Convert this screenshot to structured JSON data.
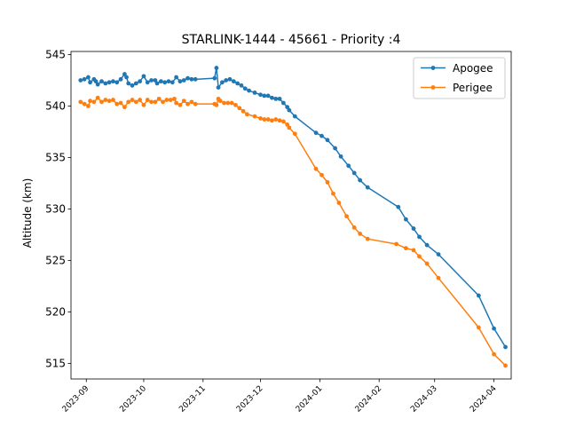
{
  "chart_data": {
    "type": "line",
    "title": "STARLINK-1444 - 45661 - Priority :4",
    "xlabel": "",
    "ylabel": "Altitude (km)",
    "xlim": [
      "2023-08-24",
      "2024-04-10"
    ],
    "ylim": [
      513.5,
      545.3
    ],
    "x_ticks": [
      "2023-09",
      "2023-10",
      "2023-11",
      "2023-12",
      "2024-01",
      "2024-02",
      "2024-03",
      "2024-04"
    ],
    "y_ticks": [
      515,
      520,
      525,
      530,
      535,
      540,
      545
    ],
    "grid": false,
    "legend_position": "top-right",
    "series": [
      {
        "name": "Apogee",
        "color": "#1f77b4",
        "points": [
          [
            "2023-08-29",
            542.5
          ],
          [
            "2023-08-31",
            542.6
          ],
          [
            "2023-09-02",
            542.8
          ],
          [
            "2023-09-03",
            542.3
          ],
          [
            "2023-09-05",
            542.6
          ],
          [
            "2023-09-06",
            542.4
          ],
          [
            "2023-09-07",
            542.1
          ],
          [
            "2023-09-09",
            542.4
          ],
          [
            "2023-09-11",
            542.2
          ],
          [
            "2023-09-13",
            542.3
          ],
          [
            "2023-09-15",
            542.4
          ],
          [
            "2023-09-17",
            542.3
          ],
          [
            "2023-09-19",
            542.6
          ],
          [
            "2023-09-21",
            543.1
          ],
          [
            "2023-09-22",
            542.8
          ],
          [
            "2023-09-23",
            542.2
          ],
          [
            "2023-09-25",
            542.0
          ],
          [
            "2023-09-27",
            542.2
          ],
          [
            "2023-09-29",
            542.4
          ],
          [
            "2023-10-01",
            542.9
          ],
          [
            "2023-10-03",
            542.3
          ],
          [
            "2023-10-05",
            542.5
          ],
          [
            "2023-10-07",
            542.5
          ],
          [
            "2023-10-08",
            542.2
          ],
          [
            "2023-10-10",
            542.4
          ],
          [
            "2023-10-12",
            542.3
          ],
          [
            "2023-10-14",
            542.4
          ],
          [
            "2023-10-16",
            542.3
          ],
          [
            "2023-10-18",
            542.8
          ],
          [
            "2023-10-20",
            542.4
          ],
          [
            "2023-10-22",
            542.5
          ],
          [
            "2023-10-24",
            542.7
          ],
          [
            "2023-10-26",
            542.6
          ],
          [
            "2023-10-28",
            542.6
          ],
          [
            "2023-11-07",
            542.7
          ],
          [
            "2023-11-08",
            543.7
          ],
          [
            "2023-11-09",
            541.8
          ],
          [
            "2023-11-11",
            542.3
          ],
          [
            "2023-11-13",
            542.5
          ],
          [
            "2023-11-15",
            542.6
          ],
          [
            "2023-11-17",
            542.4
          ],
          [
            "2023-11-19",
            542.2
          ],
          [
            "2023-11-21",
            542.0
          ],
          [
            "2023-11-23",
            541.7
          ],
          [
            "2023-11-25",
            541.5
          ],
          [
            "2023-11-28",
            541.3
          ],
          [
            "2023-12-01",
            541.1
          ],
          [
            "2023-12-03",
            541.0
          ],
          [
            "2023-12-05",
            541.0
          ],
          [
            "2023-12-07",
            540.8
          ],
          [
            "2023-12-09",
            540.7
          ],
          [
            "2023-12-11",
            540.7
          ],
          [
            "2023-12-13",
            540.3
          ],
          [
            "2023-12-15",
            539.9
          ],
          [
            "2023-12-16",
            539.6
          ],
          [
            "2023-12-19",
            539.0
          ],
          [
            "2023-12-30",
            537.4
          ],
          [
            "2024-01-02",
            537.1
          ],
          [
            "2024-01-05",
            536.7
          ],
          [
            "2024-01-09",
            535.9
          ],
          [
            "2024-01-12",
            535.1
          ],
          [
            "2024-01-16",
            534.2
          ],
          [
            "2024-01-19",
            533.5
          ],
          [
            "2024-01-22",
            532.8
          ],
          [
            "2024-01-26",
            532.1
          ],
          [
            "2024-02-11",
            530.2
          ],
          [
            "2024-02-15",
            529.0
          ],
          [
            "2024-02-19",
            528.1
          ],
          [
            "2024-02-22",
            527.3
          ],
          [
            "2024-02-26",
            526.5
          ],
          [
            "2024-03-03",
            525.6
          ],
          [
            "2024-03-24",
            521.6
          ],
          [
            "2024-04-01",
            518.4
          ],
          [
            "2024-04-07",
            516.6
          ]
        ]
      },
      {
        "name": "Perigee",
        "color": "#ff7f0e",
        "points": [
          [
            "2023-08-29",
            540.4
          ],
          [
            "2023-08-31",
            540.2
          ],
          [
            "2023-09-02",
            540.0
          ],
          [
            "2023-09-03",
            540.5
          ],
          [
            "2023-09-05",
            540.4
          ],
          [
            "2023-09-07",
            540.8
          ],
          [
            "2023-09-09",
            540.4
          ],
          [
            "2023-09-11",
            540.6
          ],
          [
            "2023-09-13",
            540.5
          ],
          [
            "2023-09-15",
            540.6
          ],
          [
            "2023-09-17",
            540.2
          ],
          [
            "2023-09-19",
            540.3
          ],
          [
            "2023-09-21",
            539.9
          ],
          [
            "2023-09-23",
            540.4
          ],
          [
            "2023-09-25",
            540.6
          ],
          [
            "2023-09-27",
            540.4
          ],
          [
            "2023-09-29",
            540.6
          ],
          [
            "2023-10-01",
            540.1
          ],
          [
            "2023-10-03",
            540.6
          ],
          [
            "2023-10-05",
            540.4
          ],
          [
            "2023-10-07",
            540.4
          ],
          [
            "2023-10-09",
            540.7
          ],
          [
            "2023-10-11",
            540.4
          ],
          [
            "2023-10-13",
            540.6
          ],
          [
            "2023-10-15",
            540.6
          ],
          [
            "2023-10-17",
            540.7
          ],
          [
            "2023-10-18",
            540.3
          ],
          [
            "2023-10-20",
            540.1
          ],
          [
            "2023-10-22",
            540.5
          ],
          [
            "2023-10-24",
            540.2
          ],
          [
            "2023-10-26",
            540.4
          ],
          [
            "2023-10-28",
            540.2
          ],
          [
            "2023-11-07",
            540.2
          ],
          [
            "2023-11-08",
            540.1
          ],
          [
            "2023-11-09",
            540.7
          ],
          [
            "2023-11-10",
            540.5
          ],
          [
            "2023-11-12",
            540.3
          ],
          [
            "2023-11-14",
            540.3
          ],
          [
            "2023-11-16",
            540.3
          ],
          [
            "2023-11-18",
            540.1
          ],
          [
            "2023-11-20",
            539.8
          ],
          [
            "2023-11-22",
            539.5
          ],
          [
            "2023-11-24",
            539.2
          ],
          [
            "2023-11-28",
            539.0
          ],
          [
            "2023-12-01",
            538.8
          ],
          [
            "2023-12-03",
            538.7
          ],
          [
            "2023-12-05",
            538.7
          ],
          [
            "2023-12-07",
            538.6
          ],
          [
            "2023-12-09",
            538.7
          ],
          [
            "2023-12-11",
            538.6
          ],
          [
            "2023-12-13",
            538.5
          ],
          [
            "2023-12-15",
            538.2
          ],
          [
            "2023-12-16",
            537.9
          ],
          [
            "2023-12-19",
            537.3
          ],
          [
            "2023-12-30",
            533.9
          ],
          [
            "2024-01-02",
            533.3
          ],
          [
            "2024-01-05",
            532.6
          ],
          [
            "2024-01-08",
            531.5
          ],
          [
            "2024-01-11",
            530.6
          ],
          [
            "2024-01-15",
            529.3
          ],
          [
            "2024-01-19",
            528.2
          ],
          [
            "2024-01-22",
            527.6
          ],
          [
            "2024-01-26",
            527.1
          ],
          [
            "2024-02-10",
            526.6
          ],
          [
            "2024-02-15",
            526.2
          ],
          [
            "2024-02-19",
            526.0
          ],
          [
            "2024-02-22",
            525.4
          ],
          [
            "2024-02-26",
            524.7
          ],
          [
            "2024-03-03",
            523.3
          ],
          [
            "2024-03-24",
            518.5
          ],
          [
            "2024-04-01",
            515.9
          ],
          [
            "2024-04-07",
            514.8
          ]
        ]
      }
    ]
  }
}
